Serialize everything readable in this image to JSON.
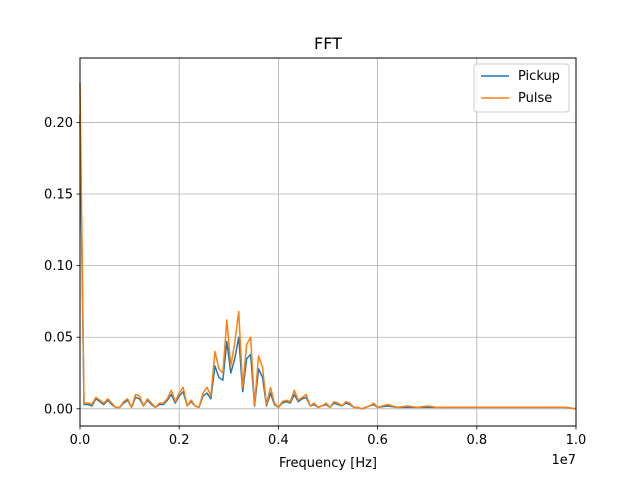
{
  "chart_data": {
    "type": "line",
    "title": "FFT",
    "xlabel": "Frequency [Hz]",
    "ylabel": "",
    "x_offset_label": "1e7",
    "xlim": [
      0,
      1.0
    ],
    "ylim": [
      -0.012,
      0.245
    ],
    "x_ticks": [
      0.0,
      0.2,
      0.4,
      0.6,
      0.8,
      1.0
    ],
    "x_tick_labels": [
      "0.0",
      "0.2",
      "0.4",
      "0.6",
      "0.8",
      "1.0"
    ],
    "y_ticks": [
      0.0,
      0.05,
      0.1,
      0.15,
      0.2
    ],
    "y_tick_labels": [
      "0.00",
      "0.05",
      "0.10",
      "0.15",
      "0.20"
    ],
    "grid": true,
    "legend_position": "top-right",
    "x": [
      0.0,
      0.008,
      0.016,
      0.024,
      0.032,
      0.04,
      0.048,
      0.056,
      0.064,
      0.072,
      0.08,
      0.088,
      0.096,
      0.104,
      0.112,
      0.12,
      0.128,
      0.136,
      0.144,
      0.152,
      0.16,
      0.168,
      0.176,
      0.184,
      0.192,
      0.2,
      0.208,
      0.216,
      0.224,
      0.232,
      0.24,
      0.248,
      0.256,
      0.264,
      0.272,
      0.28,
      0.288,
      0.296,
      0.304,
      0.312,
      0.32,
      0.328,
      0.336,
      0.344,
      0.352,
      0.36,
      0.368,
      0.376,
      0.384,
      0.392,
      0.4,
      0.408,
      0.416,
      0.424,
      0.432,
      0.44,
      0.448,
      0.456,
      0.464,
      0.472,
      0.48,
      0.488,
      0.496,
      0.504,
      0.512,
      0.52,
      0.528,
      0.536,
      0.544,
      0.552,
      0.56,
      0.568,
      0.576,
      0.584,
      0.592,
      0.6,
      0.62,
      0.64,
      0.66,
      0.68,
      0.7,
      0.72,
      0.74,
      0.76,
      0.78,
      0.8,
      0.82,
      0.84,
      0.86,
      0.88,
      0.9,
      0.92,
      0.94,
      0.96,
      0.98,
      1.0
    ],
    "series": [
      {
        "name": "Pickup",
        "color": "#1f77b4",
        "values": [
          0.205,
          0.003,
          0.003,
          0.002,
          0.007,
          0.005,
          0.003,
          0.006,
          0.003,
          0.001,
          0.001,
          0.004,
          0.006,
          0.001,
          0.008,
          0.007,
          0.002,
          0.006,
          0.003,
          0.001,
          0.003,
          0.003,
          0.006,
          0.01,
          0.004,
          0.009,
          0.012,
          0.002,
          0.005,
          0.002,
          0.001,
          0.009,
          0.011,
          0.007,
          0.03,
          0.022,
          0.02,
          0.047,
          0.025,
          0.035,
          0.05,
          0.012,
          0.035,
          0.038,
          0.002,
          0.028,
          0.022,
          0.002,
          0.011,
          0.003,
          0.001,
          0.004,
          0.005,
          0.004,
          0.01,
          0.005,
          0.007,
          0.008,
          0.002,
          0.003,
          0.001,
          0.002,
          0.003,
          0.001,
          0.004,
          0.003,
          0.002,
          0.004,
          0.003,
          0.001,
          0.001,
          0.0,
          0.001,
          0.002,
          0.003,
          0.001,
          0.002,
          0.001,
          0.001,
          0.001,
          0.001,
          0.001,
          0.001,
          0.001,
          0.001,
          0.001,
          0.001,
          0.001,
          0.001,
          0.001,
          0.001,
          0.001,
          0.001,
          0.001,
          0.001,
          0.0
        ]
      },
      {
        "name": "Pulse",
        "color": "#ff7f0e",
        "values": [
          0.228,
          0.004,
          0.004,
          0.003,
          0.008,
          0.006,
          0.004,
          0.007,
          0.004,
          0.001,
          0.001,
          0.005,
          0.007,
          0.001,
          0.01,
          0.009,
          0.002,
          0.007,
          0.004,
          0.001,
          0.004,
          0.004,
          0.007,
          0.013,
          0.005,
          0.011,
          0.015,
          0.002,
          0.006,
          0.002,
          0.001,
          0.011,
          0.015,
          0.009,
          0.04,
          0.028,
          0.025,
          0.062,
          0.03,
          0.046,
          0.068,
          0.015,
          0.045,
          0.05,
          0.003,
          0.037,
          0.029,
          0.003,
          0.015,
          0.004,
          0.001,
          0.005,
          0.006,
          0.005,
          0.013,
          0.006,
          0.008,
          0.01,
          0.002,
          0.004,
          0.001,
          0.002,
          0.004,
          0.001,
          0.005,
          0.004,
          0.002,
          0.005,
          0.004,
          0.001,
          0.001,
          0.0,
          0.001,
          0.002,
          0.004,
          0.001,
          0.003,
          0.001,
          0.002,
          0.001,
          0.002,
          0.001,
          0.001,
          0.001,
          0.001,
          0.001,
          0.001,
          0.001,
          0.001,
          0.001,
          0.001,
          0.001,
          0.001,
          0.001,
          0.001,
          0.0
        ]
      }
    ]
  }
}
